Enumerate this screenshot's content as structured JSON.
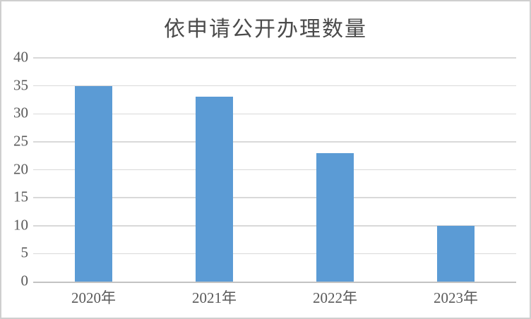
{
  "chart_data": {
    "type": "bar",
    "title": "依申请公开办理数量",
    "categories": [
      "2020年",
      "2021年",
      "2022年",
      "2023年"
    ],
    "values": [
      35,
      33,
      23,
      10
    ],
    "xlabel": "",
    "ylabel": "",
    "ylim": [
      0,
      40
    ],
    "ytick_step": 5,
    "grid": true,
    "legend": "none",
    "bar_color": "#5B9BD5",
    "gridline_color": "#D9D9D9",
    "axis_line_color": "#C3C3C3",
    "text_color": "#595959",
    "title_color": "#4A4A4A"
  }
}
